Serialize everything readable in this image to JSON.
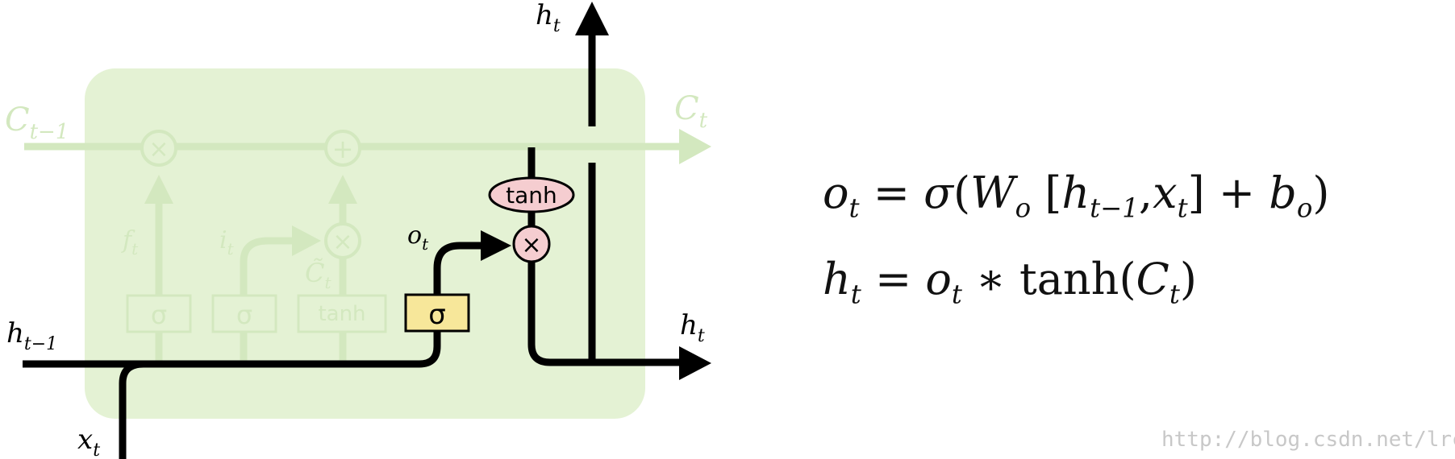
{
  "colors": {
    "cell_fill": "#e4f2d4",
    "faded": "#d3e8bf",
    "active": "#000000",
    "sigma_gate_fill": "#f7e79a",
    "pointwise_fill": "#f5cdd0"
  },
  "diagram": {
    "labels": {
      "h_prev": "h",
      "h_prev_sub": "t−1",
      "x_in": "x",
      "x_in_sub": "t",
      "c_prev": "C",
      "c_prev_sub": "t−1",
      "c_out": "C",
      "c_out_sub": "t",
      "h_top": "h",
      "h_top_sub": "t",
      "h_right": "h",
      "h_right_sub": "t",
      "forget": "f",
      "forget_sub": "t",
      "input": "i",
      "input_sub": "t",
      "candidate": "C̃",
      "candidate_sub": "t",
      "output": "o",
      "output_sub": "t"
    },
    "gates": {
      "forget": "σ",
      "input": "σ",
      "candidate": "tanh",
      "output": "σ"
    },
    "ops": {
      "forget_mult": "×",
      "add": "+",
      "input_mult": "×",
      "output_mult": "×",
      "tanh_op": "tanh"
    }
  },
  "equations": {
    "output_gate": {
      "lhs": "o",
      "lhs_sub": "t",
      "eq": "=",
      "sigma": "σ",
      "open": "(",
      "w": "W",
      "w_sub": "o",
      "bracket_open": "[",
      "h": "h",
      "h_sub": "t−1",
      "comma": ",",
      "x": "x",
      "x_sub": "t",
      "bracket_close": "]",
      "plus": "+",
      "b": "b",
      "b_sub": "o",
      "close": ")"
    },
    "hidden_state": {
      "lhs": "h",
      "lhs_sub": "t",
      "eq": "=",
      "o": "o",
      "o_sub": "t",
      "times": "∗",
      "tanh": "tanh",
      "open": "(",
      "c": "C",
      "c_sub": "t",
      "close": ")"
    }
  },
  "watermark": "http://blog.csdn.net/lrc"
}
